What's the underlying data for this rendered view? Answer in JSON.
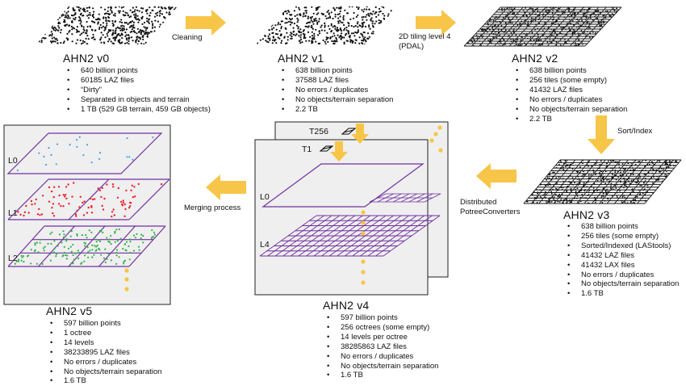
{
  "colors": {
    "arrow": "#f7c548",
    "grid_purple": "#7030a0",
    "panel_bg": "#efefef",
    "point_blue": "#4a9fdc",
    "point_red": "#e8232b",
    "point_green": "#33b04a",
    "dot_gold": "#f7c548"
  },
  "icons": {
    "step_arrow": "right-arrow-icon",
    "down_arrow": "down-arrow-icon",
    "left_arrow": "left-arrow-icon",
    "tile_marker": "tile-marker-icon"
  },
  "stages": {
    "v0": {
      "title": "AHN2 v0",
      "bullets": [
        "640 billion points",
        "60185 LAZ files",
        "“Dirty”",
        "Separated in objects and terrain",
        "1 TB (529 GB terrain, 459 GB objects)"
      ]
    },
    "v1": {
      "title": "AHN2 v1",
      "bullets": [
        "638 billion points",
        "37588 LAZ files",
        "No errors / duplicates",
        "No objects/terrain separation",
        "2.2 TB"
      ]
    },
    "v2": {
      "title": "AHN2 v2",
      "bullets": [
        "638 billion points",
        "256 tiles (some empty)",
        "41432 LAZ files",
        "No errors / duplicates",
        "No objects/terrain separation",
        "2.2 TB"
      ]
    },
    "v3": {
      "title": "AHN2 v3",
      "bullets": [
        "638 billion points",
        "256 tiles (some empty)",
        "Sorted/Indexed (LAStools)",
        "41432 LAZ files",
        "41432 LAX files",
        "No errors / duplicates",
        "No objects/terrain separation",
        "1.6 TB"
      ]
    },
    "v4": {
      "title": "AHN2 v4",
      "bullets": [
        "597 billion points",
        "256 octrees (some empty)",
        "14 levels per octree",
        "38285863 LAZ files",
        "No errors / duplicates",
        "No objects/terrain separation",
        "1.6 TB"
      ]
    },
    "v5": {
      "title": "AHN2 v5",
      "bullets": [
        "597 billion points",
        "1 octree",
        "14 levels",
        "38233895 LAZ files",
        "No errors / duplicates",
        "No objects/terrain separation",
        "1.6 TB"
      ]
    }
  },
  "steps": {
    "cleaning": "Cleaning",
    "tiling_line1": "2D tiling level 4",
    "tiling_line2": "(PDAL)",
    "sort": "Sort/Index",
    "distributed_line1": "Distributed",
    "distributed_line2": "PotreeConverters",
    "merging": "Merging process"
  },
  "octree_panel": {
    "tile_back": "T256",
    "tile_front": "T1",
    "level_top": "L0",
    "level_bottom": "L4"
  },
  "merged_panel": {
    "levels": [
      "L0",
      "L1",
      "L2"
    ]
  }
}
